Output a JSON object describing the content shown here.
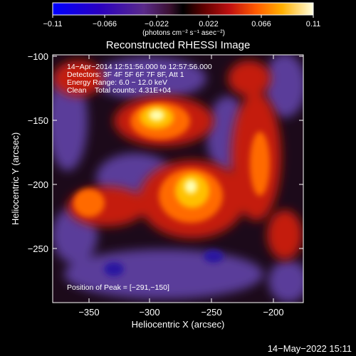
{
  "colorbar": {
    "ticks": [
      "−0.11",
      "−0.066",
      "−0.022",
      "0.022",
      "0.066",
      "0.11"
    ],
    "units": "(photons cm⁻² s⁻¹ asec⁻²)"
  },
  "plot": {
    "title": "Reconstructed RHESSI Image",
    "xlabel": "Heliocentric X (arcsec)",
    "ylabel": "Heliocentric Y (arcsec)",
    "xticks": [
      "−350",
      "−300",
      "−250",
      "−200"
    ],
    "yticks": [
      "−100",
      "−150",
      "−200",
      "−250"
    ]
  },
  "overlay": {
    "line1": "14−Apr−2014 12:51:56.000 to 12:57:56.000",
    "line2": "Detectors: 3F 4F 5F 6F 7F 8F, Att 1",
    "line3": "Energy Range: 6.0 − 12.0 keV",
    "line4": "Clean    Total counts: 4.31E+04",
    "peak": "Position of Peak = [−291,−150]"
  },
  "footer": {
    "date": "14−May−2022 15:11"
  }
}
